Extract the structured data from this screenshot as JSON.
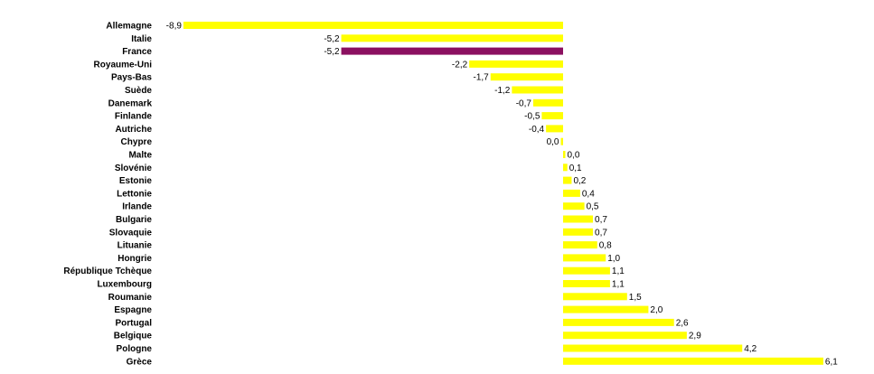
{
  "chart_data": {
    "type": "bar",
    "orientation": "horizontal",
    "categories": [
      "Allemagne",
      "Italie",
      "France",
      "Royaume-Uni",
      "Pays-Bas",
      "Suède",
      "Danemark",
      "Finlande",
      "Autriche",
      "Chypre",
      "Malte",
      "Slovénie",
      "Estonie",
      "Lettonie",
      "Irlande",
      "Bulgarie",
      "Slovaquie",
      "Lituanie",
      "Hongrie",
      "République Tchèque",
      "Luxembourg",
      "Roumanie",
      "Espagne",
      "Portugal",
      "Belgique",
      "Pologne",
      "Grèce"
    ],
    "values": [
      -8.9,
      -5.2,
      -5.2,
      -2.2,
      -1.7,
      -1.2,
      -0.7,
      -0.5,
      -0.4,
      0.0,
      0.0,
      0.1,
      0.2,
      0.4,
      0.5,
      0.7,
      0.7,
      0.8,
      1.0,
      1.1,
      1.1,
      1.5,
      2.0,
      2.6,
      2.9,
      4.2,
      6.1
    ],
    "value_labels": [
      "-8,9",
      "-5,2",
      "-5,2",
      "-2,2",
      "-1,7",
      "-1,2",
      "-0,7",
      "-0,5",
      "-0,4",
      "0,0",
      "0,0",
      "0,1",
      "0,2",
      "0,4",
      "0,5",
      "0,7",
      "0,7",
      "0,8",
      "1,0",
      "1,1",
      "1,1",
      "1,5",
      "2,0",
      "2,6",
      "2,9",
      "4,2",
      "6,1"
    ],
    "highlight_category": "France",
    "xlim": [
      -8.9,
      6.1
    ],
    "grid": false,
    "legend": "none",
    "colors": {
      "bar": "#ffff00",
      "highlight": "#8b1060",
      "text": "#000000"
    }
  }
}
